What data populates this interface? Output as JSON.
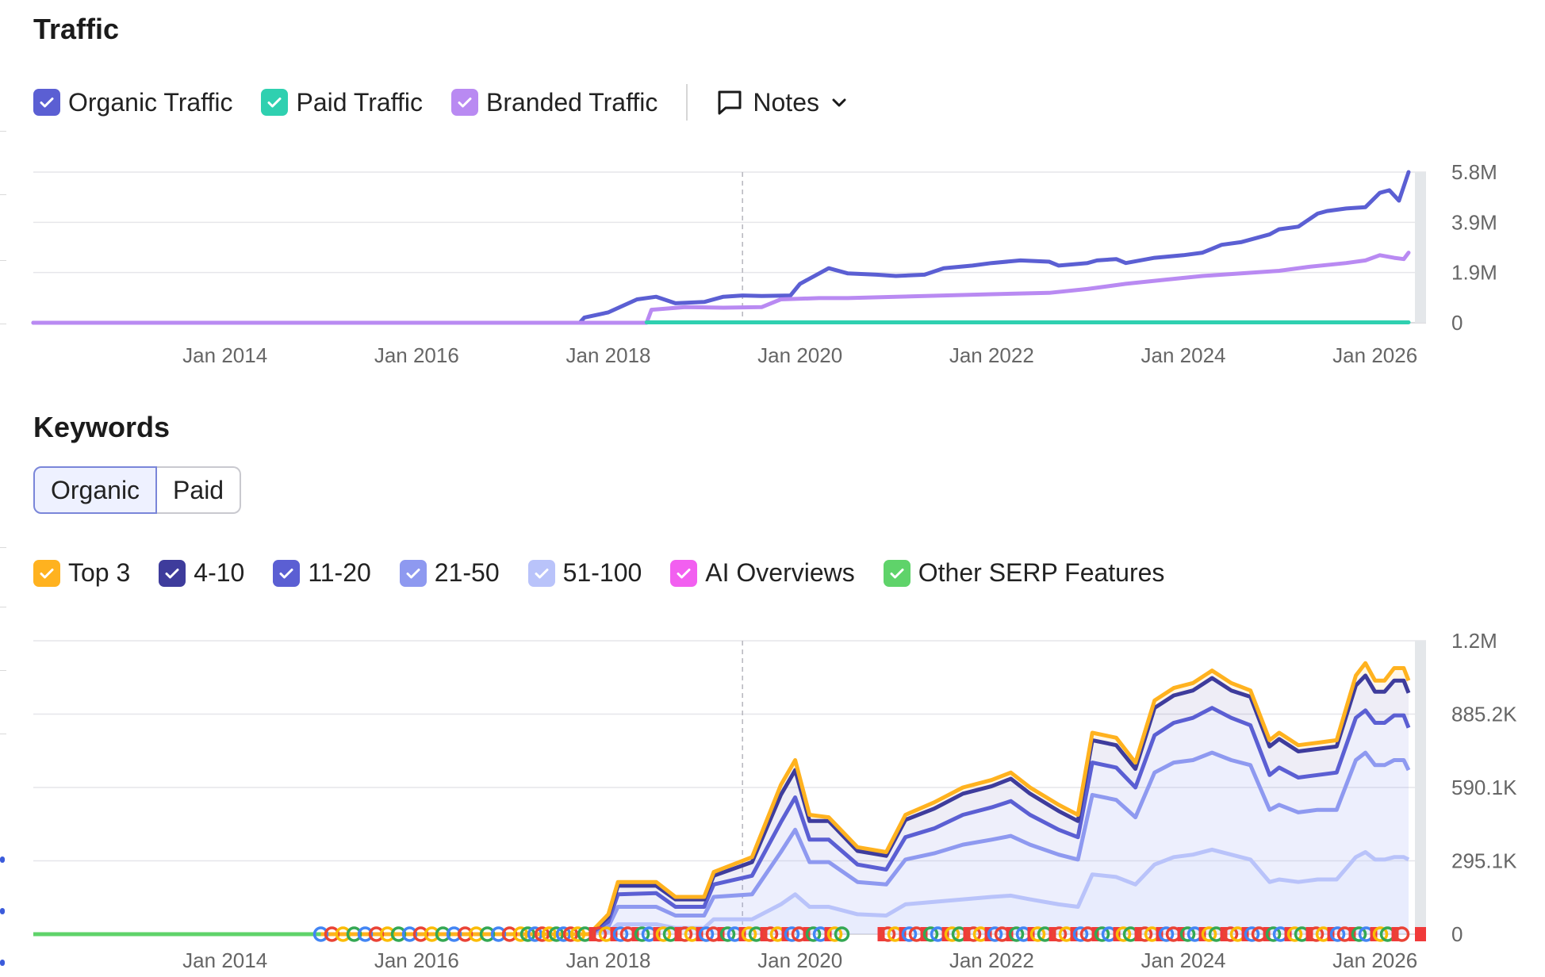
{
  "traffic": {
    "title": "Traffic",
    "legend": [
      {
        "label": "Organic Traffic",
        "color": "#5b5fd3"
      },
      {
        "label": "Paid Traffic",
        "color": "#2fd0b0"
      },
      {
        "label": "Branded Traffic",
        "color": "#b98af2"
      }
    ],
    "notes_label": "Notes"
  },
  "keywords": {
    "title": "Keywords",
    "tabs": {
      "organic": "Organic",
      "paid": "Paid"
    },
    "legend": [
      {
        "label": "Top 3",
        "color": "#ffb21f"
      },
      {
        "label": "4-10",
        "color": "#3e3c9c"
      },
      {
        "label": "11-20",
        "color": "#5b5fd3"
      },
      {
        "label": "21-50",
        "color": "#8e99f0"
      },
      {
        "label": "51-100",
        "color": "#b9c3fa"
      },
      {
        "label": "AI Overviews",
        "color": "#f25ff0"
      },
      {
        "label": "Other SERP Features",
        "color": "#5fd36a"
      }
    ]
  },
  "chart_data": [
    {
      "type": "line",
      "y_ticks": [
        "0",
        "1.9M",
        "3.9M",
        "5.8M"
      ],
      "x_ticks": [
        {
          "label": "Jan 2014",
          "t": 2014.0
        },
        {
          "label": "Jan 2016",
          "t": 2016.0
        },
        {
          "label": "Jan 2018",
          "t": 2018.0
        },
        {
          "label": "Jan 2020",
          "t": 2020.0
        },
        {
          "label": "Jan 2022",
          "t": 2022.0
        },
        {
          "label": "Jan 2024",
          "t": 2024.0
        },
        {
          "label": "Jan 2026",
          "t": 2026.0
        }
      ],
      "ylim": [
        0,
        5800000
      ],
      "xlim": [
        2012.0,
        2026.4
      ],
      "marker_t": 2019.4,
      "series": [
        {
          "name": "Organic Traffic",
          "color": "#5b5fd3",
          "x": [
            2012.0,
            2017.7,
            2017.75,
            2018.0,
            2018.3,
            2018.5,
            2018.7,
            2019.0,
            2019.2,
            2019.4,
            2019.6,
            2019.9,
            2020.0,
            2020.2,
            2020.3,
            2020.5,
            2020.8,
            2021.0,
            2021.3,
            2021.5,
            2021.8,
            2022.0,
            2022.3,
            2022.6,
            2022.7,
            2023.0,
            2023.1,
            2023.3,
            2023.4,
            2023.7,
            2024.0,
            2024.2,
            2024.4,
            2024.6,
            2024.9,
            2025.0,
            2025.2,
            2025.4,
            2025.5,
            2025.7,
            2025.9,
            2026.05,
            2026.15,
            2026.25,
            2026.35
          ],
          "y": [
            0,
            0,
            200000,
            400000,
            900000,
            1000000,
            750000,
            800000,
            1000000,
            1050000,
            1030000,
            1050000,
            1500000,
            1900000,
            2100000,
            1900000,
            1850000,
            1800000,
            1850000,
            2100000,
            2200000,
            2300000,
            2400000,
            2350000,
            2200000,
            2300000,
            2400000,
            2450000,
            2300000,
            2500000,
            2600000,
            2700000,
            3000000,
            3100000,
            3400000,
            3600000,
            3700000,
            4200000,
            4300000,
            4400000,
            4450000,
            5000000,
            5100000,
            4700000,
            5800000
          ]
        },
        {
          "name": "Branded Traffic",
          "color": "#b98af2",
          "x": [
            2012.0,
            2018.4,
            2018.45,
            2018.8,
            2019.2,
            2019.6,
            2019.8,
            2020.2,
            2020.5,
            2021.0,
            2021.5,
            2022.0,
            2022.6,
            2023.0,
            2023.4,
            2023.8,
            2024.2,
            2024.6,
            2025.0,
            2025.3,
            2025.7,
            2025.9,
            2026.05,
            2026.2,
            2026.3,
            2026.35
          ],
          "y": [
            0,
            0,
            500000,
            600000,
            580000,
            600000,
            900000,
            950000,
            950000,
            1000000,
            1050000,
            1100000,
            1150000,
            1300000,
            1500000,
            1650000,
            1800000,
            1900000,
            2000000,
            2150000,
            2300000,
            2400000,
            2600000,
            2500000,
            2450000,
            2700000
          ]
        },
        {
          "name": "Paid Traffic",
          "color": "#2fd0b0",
          "x": [
            2018.4,
            2026.35
          ],
          "y": [
            15000,
            15000
          ]
        }
      ]
    },
    {
      "type": "area",
      "y_ticks": [
        "0",
        "295.1K",
        "590.1K",
        "885.2K",
        "1.2M"
      ],
      "x_ticks": [
        {
          "label": "Jan 2014",
          "t": 2014.0
        },
        {
          "label": "Jan 2016",
          "t": 2016.0
        },
        {
          "label": "Jan 2018",
          "t": 2018.0
        },
        {
          "label": "Jan 2020",
          "t": 2020.0
        },
        {
          "label": "Jan 2022",
          "t": 2022.0
        },
        {
          "label": "Jan 2024",
          "t": 2024.0
        },
        {
          "label": "Jan 2026",
          "t": 2026.0
        }
      ],
      "ylim": [
        0,
        1180000
      ],
      "xlim": [
        2012.0,
        2026.4
      ],
      "marker_t": 2019.4,
      "x": [
        2012.0,
        2017.8,
        2018.0,
        2018.1,
        2018.5,
        2018.7,
        2019.0,
        2019.1,
        2019.5,
        2019.8,
        2019.95,
        2020.1,
        2020.3,
        2020.6,
        2020.9,
        2021.1,
        2021.4,
        2021.7,
        2022.0,
        2022.2,
        2022.4,
        2022.7,
        2022.9,
        2023.05,
        2023.3,
        2023.5,
        2023.7,
        2023.9,
        2024.1,
        2024.3,
        2024.5,
        2024.7,
        2024.9,
        2025.0,
        2025.2,
        2025.4,
        2025.6,
        2025.8,
        2025.9,
        2026.0,
        2026.1,
        2026.2,
        2026.3,
        2026.35
      ],
      "series": [
        {
          "name": "Top 3",
          "color": "#ffb21f",
          "values": [
            0,
            0,
            80000,
            210000,
            210000,
            150000,
            150000,
            250000,
            310000,
            600000,
            700000,
            480000,
            470000,
            350000,
            330000,
            480000,
            530000,
            590000,
            620000,
            650000,
            590000,
            520000,
            480000,
            810000,
            790000,
            690000,
            940000,
            990000,
            1010000,
            1060000,
            1010000,
            980000,
            780000,
            810000,
            760000,
            770000,
            780000,
            1040000,
            1090000,
            1020000,
            1020000,
            1070000,
            1070000,
            1020000
          ]
        },
        {
          "name": "4-10",
          "color": "#3e3c9c",
          "values": [
            0,
            0,
            70000,
            195000,
            195000,
            140000,
            140000,
            235000,
            290000,
            560000,
            660000,
            455000,
            455000,
            335000,
            315000,
            460000,
            505000,
            565000,
            595000,
            625000,
            565000,
            495000,
            455000,
            780000,
            760000,
            665000,
            910000,
            960000,
            980000,
            1030000,
            980000,
            955000,
            755000,
            785000,
            735000,
            745000,
            755000,
            1000000,
            1040000,
            975000,
            975000,
            1020000,
            1020000,
            970000
          ]
        },
        {
          "name": "11-20",
          "color": "#5b5fd3",
          "values": [
            0,
            0,
            50000,
            160000,
            165000,
            110000,
            110000,
            200000,
            235000,
            450000,
            550000,
            380000,
            380000,
            280000,
            260000,
            390000,
            425000,
            480000,
            510000,
            535000,
            480000,
            420000,
            390000,
            690000,
            670000,
            590000,
            800000,
            850000,
            870000,
            910000,
            870000,
            840000,
            640000,
            670000,
            630000,
            640000,
            650000,
            870000,
            900000,
            850000,
            850000,
            880000,
            880000,
            830000
          ]
        },
        {
          "name": "21-50",
          "color": "#8e99f0",
          "values": [
            0,
            0,
            30000,
            110000,
            110000,
            75000,
            75000,
            150000,
            160000,
            330000,
            420000,
            290000,
            290000,
            210000,
            200000,
            300000,
            325000,
            360000,
            380000,
            395000,
            360000,
            320000,
            300000,
            560000,
            540000,
            470000,
            650000,
            690000,
            700000,
            730000,
            700000,
            680000,
            500000,
            520000,
            490000,
            500000,
            500000,
            700000,
            730000,
            680000,
            680000,
            700000,
            700000,
            660000
          ]
        },
        {
          "name": "51-100",
          "color": "#b9c3fa",
          "values": [
            0,
            0,
            10000,
            40000,
            40000,
            25000,
            25000,
            60000,
            60000,
            120000,
            160000,
            110000,
            110000,
            80000,
            75000,
            120000,
            130000,
            140000,
            150000,
            155000,
            140000,
            120000,
            110000,
            240000,
            230000,
            200000,
            280000,
            310000,
            320000,
            340000,
            320000,
            300000,
            210000,
            220000,
            210000,
            220000,
            220000,
            310000,
            330000,
            300000,
            300000,
            310000,
            310000,
            300000
          ]
        }
      ]
    }
  ]
}
